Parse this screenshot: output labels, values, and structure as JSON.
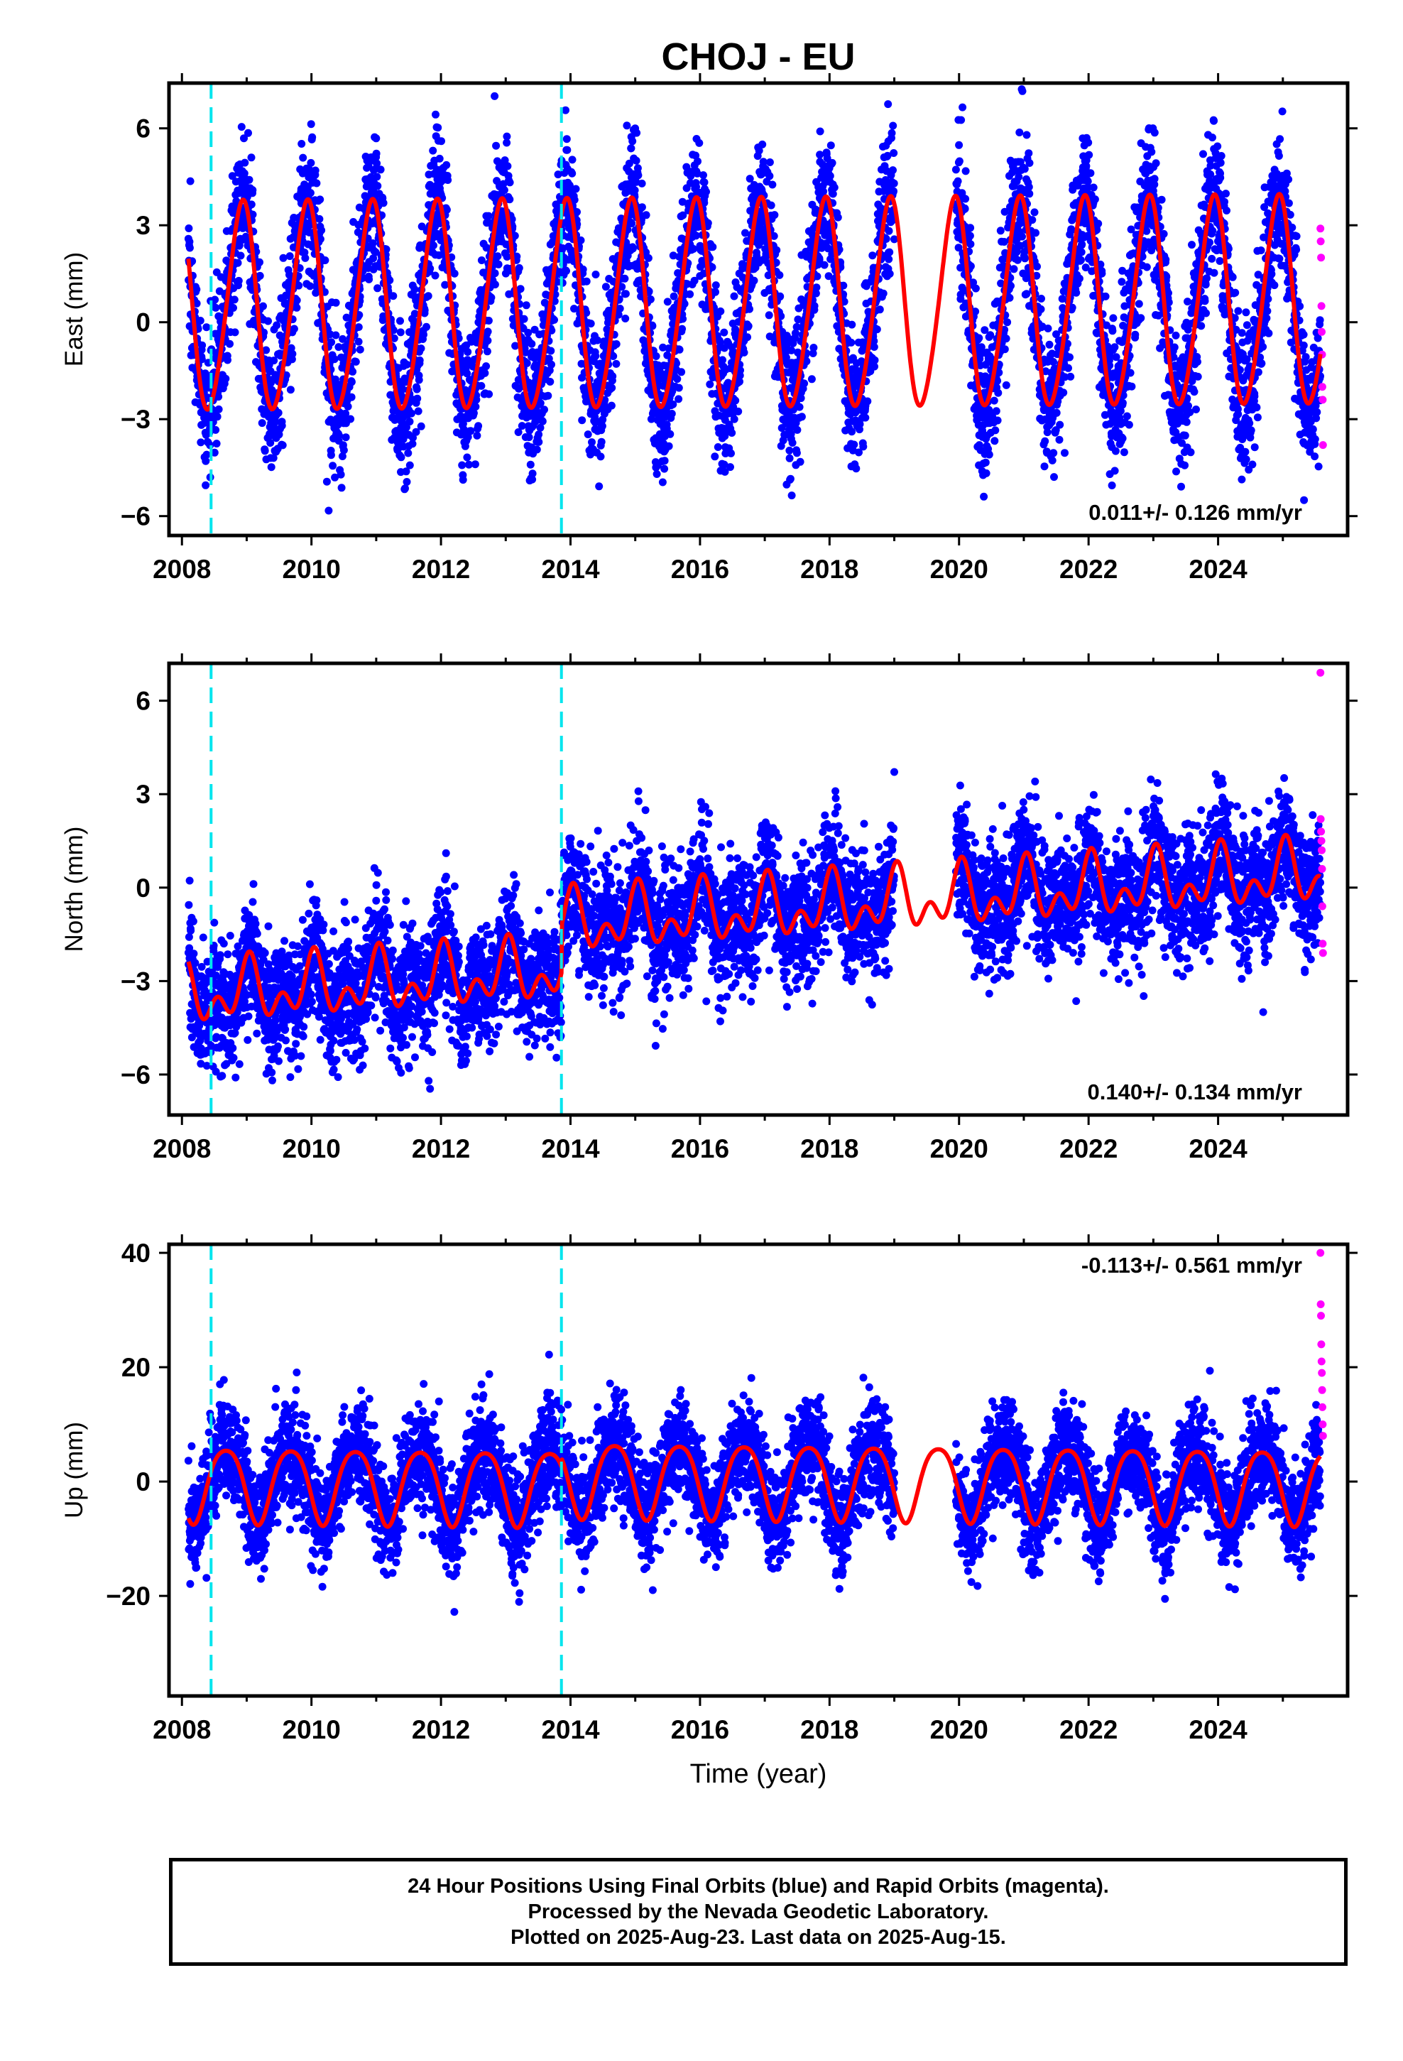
{
  "chart_data": {
    "title": "CHOJ - EU",
    "xlabel": "Time (year)",
    "xlim": [
      2007.8,
      2026.0
    ],
    "xticks": [
      2008,
      2010,
      2012,
      2014,
      2016,
      2018,
      2020,
      2022,
      2024
    ],
    "xtick_labels": [
      "2008",
      "2010",
      "2012",
      "2014",
      "2016",
      "2018",
      "2020",
      "2022",
      "2024"
    ],
    "event_lines": [
      2008.45,
      2013.86
    ],
    "gap": [
      2019.0,
      2019.95
    ],
    "final_start": 2008.1,
    "rapid_start": 2025.58,
    "last_data": 2025.62,
    "colors": {
      "final": "#0000ff",
      "rapid": "#ff00ff",
      "model": "#ff0000",
      "event": "#00e5ee",
      "axis": "#000000"
    },
    "legend": {
      "final": "Final Orbits (blue)",
      "rapid": "Rapid Orbits (magenta)"
    },
    "panels": [
      {
        "name": "east",
        "type": "scatter",
        "ylabel": "East (mm)",
        "ylim": [
          -6.6,
          7.4
        ],
        "yticks": [
          -6,
          -3,
          0,
          3,
          6
        ],
        "ytick_labels": [
          "−6",
          "−3",
          "0",
          "3",
          "6"
        ],
        "rate_label": "0.011+/- 0.126 mm/yr",
        "rate_position": "bottom-right",
        "model": {
          "offset": 0.5,
          "trend": 0.011,
          "amplitude": 3.2,
          "phase": 2.05,
          "semi_amplitude": 0.3,
          "steps": [
            {
              "t": 2013.86,
              "dy": 0
            }
          ]
        },
        "noise": 1.1,
        "rapid_values": [
          2.9,
          2.5,
          2.0,
          0.5,
          -0.3,
          -1.0,
          -2.0,
          -2.4,
          -3.8
        ]
      },
      {
        "name": "north",
        "type": "scatter",
        "ylabel": "North (mm)",
        "ylim": [
          -7.3,
          7.2
        ],
        "yticks": [
          -6,
          -3,
          0,
          3,
          6
        ],
        "ytick_labels": [
          "−6",
          "−3",
          "0",
          "3",
          "6"
        ],
        "rate_label": "0.140+/- 0.134 mm/yr",
        "rate_position": "bottom-right",
        "model": {
          "offset": -2.3,
          "trend": 0.14,
          "amplitude": 0.7,
          "phase": 1.4,
          "semi_amplitude": 0.6,
          "steps": [
            {
              "t": 2013.86,
              "dy": 1.5
            }
          ]
        },
        "noise": 1.0,
        "rapid_values": [
          6.9,
          2.2,
          1.8,
          1.5,
          1.2,
          0.6,
          -0.6,
          -1.8,
          -2.1
        ]
      },
      {
        "name": "up",
        "type": "scatter",
        "ylabel": "Up (mm)",
        "ylim": [
          -37.5,
          41.5
        ],
        "yticks": [
          -20,
          0,
          20,
          40
        ],
        "ytick_labels": [
          "−20",
          "0",
          "20",
          "40"
        ],
        "rate_label": "-0.113+/- 0.561 mm/yr",
        "rate_position": "top-right",
        "model": {
          "offset": -1.0,
          "trend": -0.113,
          "amplitude": 6.5,
          "phase": 3.6,
          "semi_amplitude": 1.0,
          "steps": [
            {
              "t": 2013.86,
              "dy": 1.5
            }
          ]
        },
        "noise": 4.5,
        "rapid_values": [
          40,
          31,
          29,
          24,
          21,
          19,
          16,
          13,
          10,
          8
        ]
      }
    ]
  },
  "footer": {
    "line1": "24 Hour Positions Using Final Orbits (blue) and Rapid Orbits (magenta).",
    "line2": "Processed by the Nevada Geodetic Laboratory.",
    "line3": "Plotted on 2025-Aug-23. Last data on 2025-Aug-15."
  }
}
